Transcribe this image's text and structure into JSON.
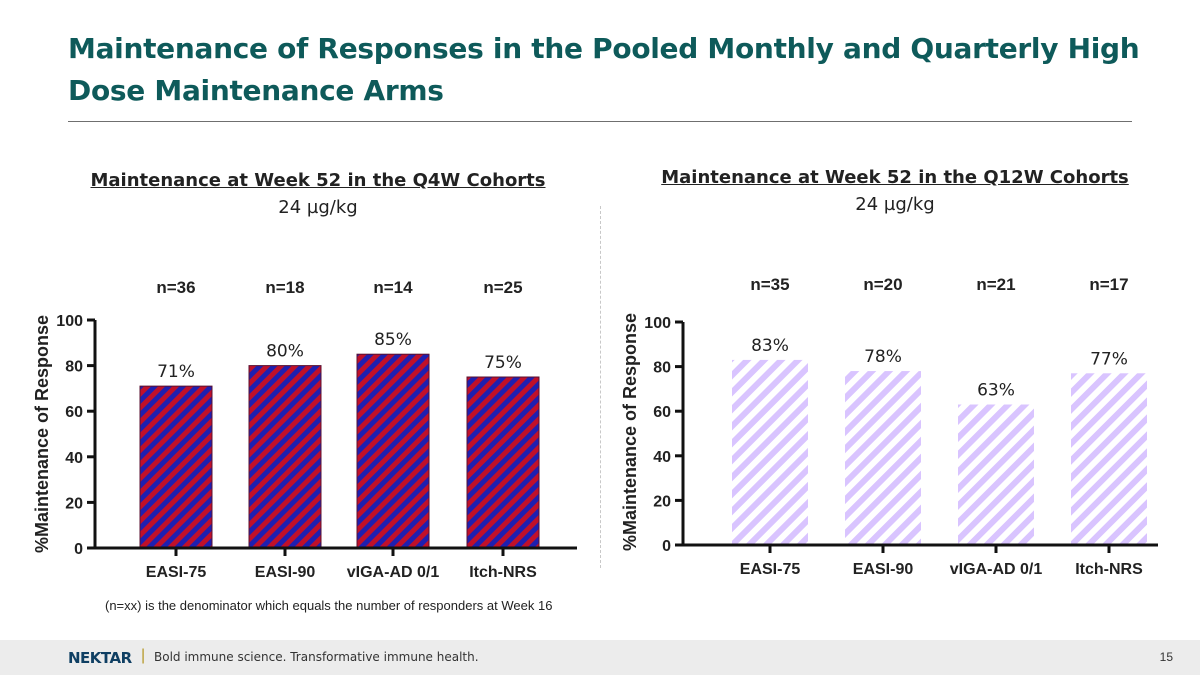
{
  "slide": {
    "title": "Maintenance of Responses in the Pooled Monthly and Quarterly High Dose Maintenance Arms",
    "footnote": "(n=xx) is the denominator which equals the number of responders at Week 16",
    "page_number": "15"
  },
  "footer": {
    "logo": "NEKTAR",
    "separator": "|",
    "tagline": "Bold immune science. Transformative immune health."
  },
  "colors": {
    "title": "#0e5a5a",
    "q4w_stripe_a": "#1f1fb0",
    "q4w_stripe_b": "#c0102a",
    "q12w_stripe_a": "#d9c4ff",
    "q12w_stripe_b": "#ffffff"
  },
  "chart_data": [
    {
      "type": "bar",
      "title": "Maintenance at Week 52 in the Q4W Cohorts",
      "subtitle": "24 µg/kg",
      "categories": [
        "EASI-75",
        "EASI-90",
        "vIGA-AD 0/1",
        "Itch-NRS"
      ],
      "values": [
        71,
        80,
        85,
        75
      ],
      "value_labels": [
        "71%",
        "80%",
        "85%",
        "75%"
      ],
      "n_labels": [
        "n=36",
        "n=18",
        "n=14",
        "n=25"
      ],
      "ylabel": "%Maintenance of Response",
      "ylim": [
        0,
        100
      ],
      "yticks": [
        0,
        20,
        40,
        60,
        80,
        100
      ],
      "grid": false,
      "legend": "none"
    },
    {
      "type": "bar",
      "title": "Maintenance at Week 52 in the Q12W Cohorts",
      "subtitle": "24 µg/kg",
      "categories": [
        "EASI-75",
        "EASI-90",
        "vIGA-AD 0/1",
        "Itch-NRS"
      ],
      "values": [
        83,
        78,
        63,
        77
      ],
      "value_labels": [
        "83%",
        "78%",
        "63%",
        "77%"
      ],
      "n_labels": [
        "n=35",
        "n=20",
        "n=21",
        "n=17"
      ],
      "ylabel": "%Maintenance of Response",
      "ylim": [
        0,
        100
      ],
      "yticks": [
        0,
        20,
        40,
        60,
        80,
        100
      ],
      "grid": false,
      "legend": "none"
    }
  ]
}
